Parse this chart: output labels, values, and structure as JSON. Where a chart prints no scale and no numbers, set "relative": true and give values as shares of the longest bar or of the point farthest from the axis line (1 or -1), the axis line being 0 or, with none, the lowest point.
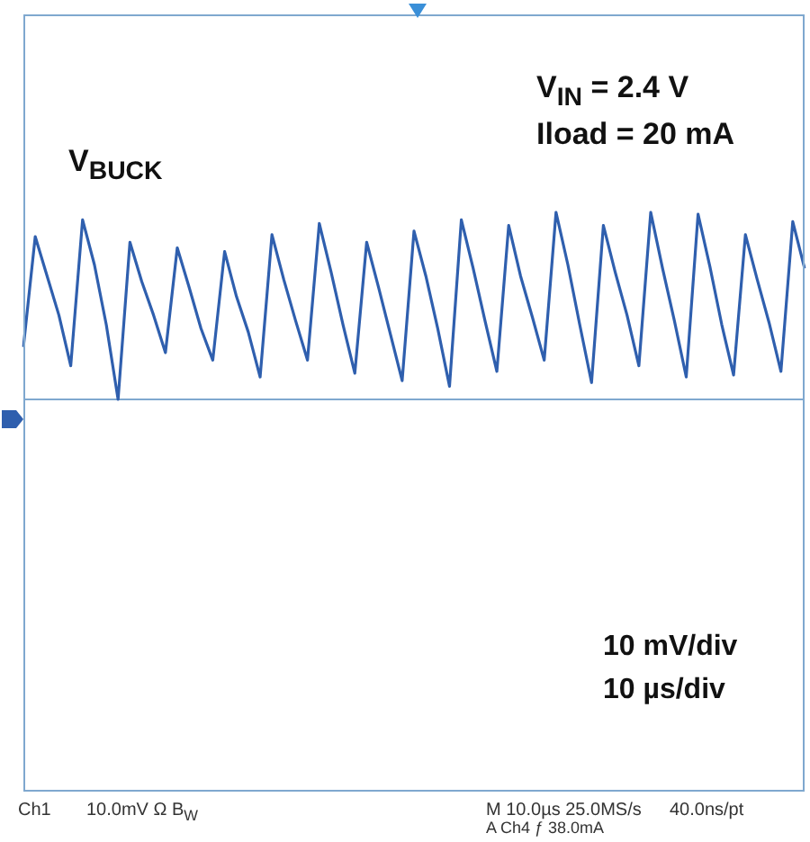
{
  "chart_data": {
    "type": "line",
    "relative": true,
    "categories": [
      null,
      null,
      null,
      null,
      null,
      null,
      null,
      null,
      null,
      null,
      null,
      null,
      null,
      null,
      null,
      null,
      null,
      null,
      null,
      null,
      null,
      null,
      null,
      null,
      null,
      null,
      null,
      null,
      null,
      null,
      null,
      null,
      null,
      null,
      null,
      null,
      null,
      null,
      null,
      null,
      null,
      null,
      null,
      null,
      null,
      null,
      null,
      null,
      null,
      null,
      null,
      null,
      null,
      null,
      null,
      null,
      null,
      null,
      null,
      null,
      null,
      null,
      null,
      null,
      null,
      null,
      null
    ],
    "series": [
      {
        "name": "V$_{BUCK}$",
        "color": "#2f5fae",
        "values": [
          0.28,
          0.87,
          0.66,
          0.45,
          0.18,
          0.96,
          0.72,
          0.4,
          0.0,
          0.84,
          0.63,
          0.45,
          0.25,
          0.81,
          0.6,
          0.38,
          0.21,
          0.79,
          0.55,
          0.36,
          0.12,
          0.88,
          0.64,
          0.42,
          0.21,
          0.94,
          0.68,
          0.4,
          0.14,
          0.84,
          0.6,
          0.35,
          0.1,
          0.9,
          0.66,
          0.38,
          0.07,
          0.96,
          0.7,
          0.42,
          0.15,
          0.93,
          0.66,
          0.44,
          0.21,
          1.0,
          0.72,
          0.4,
          0.09,
          0.93,
          0.68,
          0.45,
          0.18,
          1.0,
          0.7,
          0.42,
          0.12,
          0.99,
          0.71,
          0.4,
          0.13,
          0.88,
          0.64,
          0.41,
          0.15,
          0.95,
          0.7
        ]
      }
    ],
    "annotations": [
      "V$_{IN}$ = 2.4 V",
      "Iload = 20 mA",
      "10 mV/div",
      "10 µs/div",
      "Ch1",
      "10.0mV Ω B$_{W}$",
      "M 10.0µs 25.0MS/s",
      "40.0ns/pt",
      "A Ch4 ƒ 38.0mA"
    ]
  }
}
